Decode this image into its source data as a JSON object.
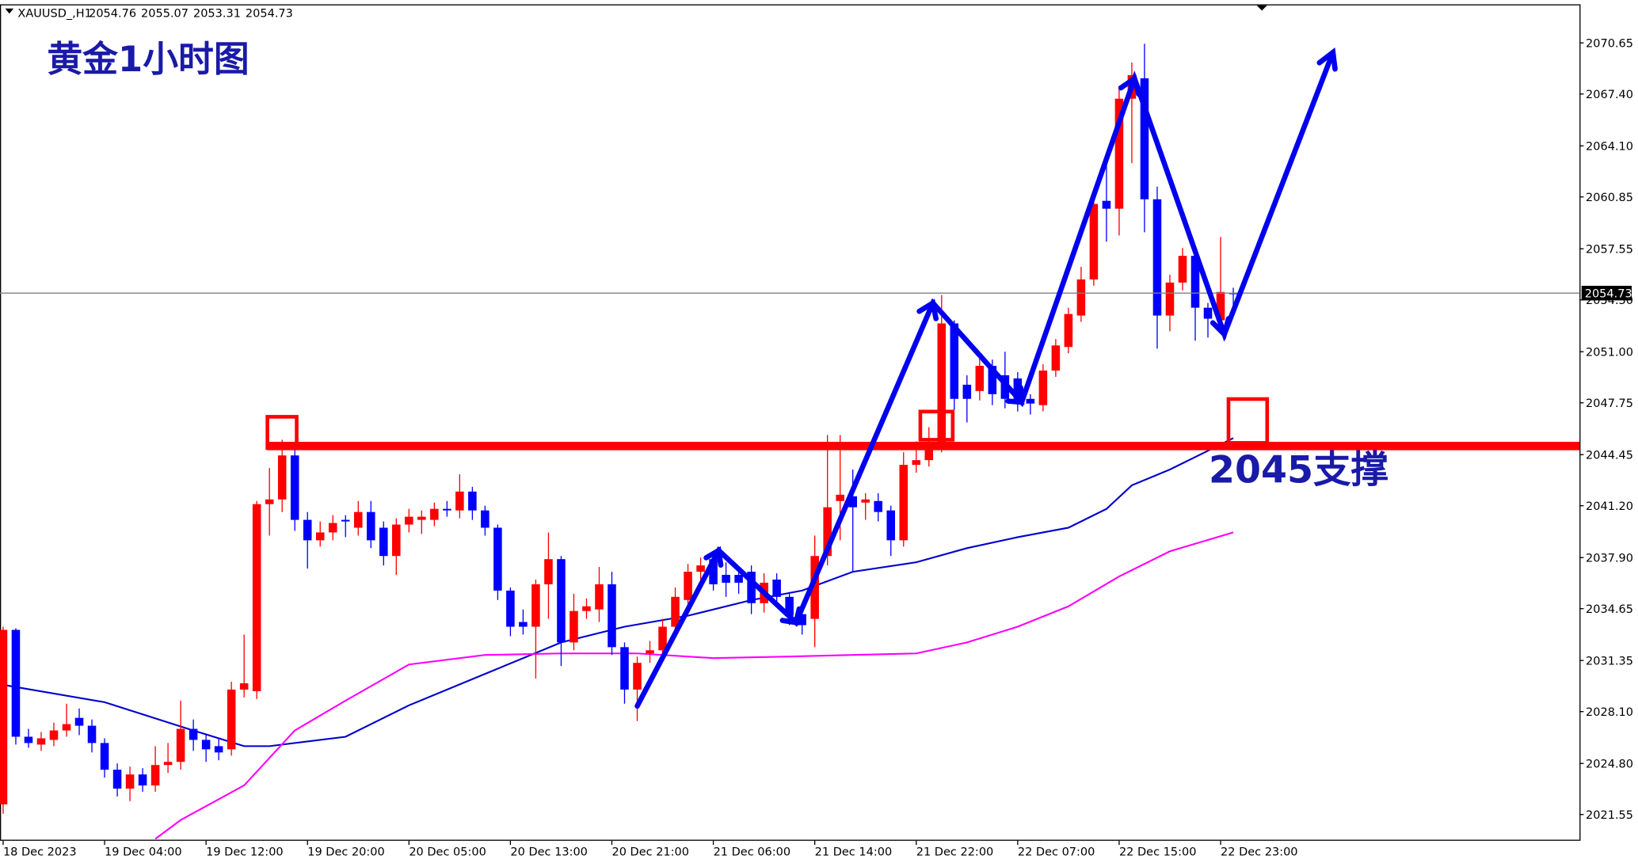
{
  "chart_data": {
    "type": "candlestick",
    "symbol": "XAUUSD_,H1",
    "ohlc_header": [
      2054.76,
      2055.07,
      2053.31,
      2054.73
    ],
    "title": "黄金1小时图",
    "support_label": "2045支撑",
    "support_level": 2045,
    "support_color": "#ff0000",
    "current_price": 2054.73,
    "up_color": "#ff0000",
    "down_color": "#0000ff",
    "grid": false,
    "ylim": [
      2019.88,
      2073.04
    ],
    "yticks": [
      2070.65,
      {
        "value": 2067.4,
        "label": "2067.40"
      },
      {
        "value": 2064.1,
        "label": "2064.10"
      },
      2060.85,
      2057.55,
      {
        "value": 2054.3,
        "label": "2054.30"
      },
      {
        "value": 2051,
        "label": "2051.00"
      },
      2047.75,
      2044.45,
      {
        "value": 2041.2,
        "label": "2041.20"
      },
      {
        "value": 2037.9,
        "label": "2037.90"
      },
      2034.65,
      2031.35,
      {
        "value": 2028.1,
        "label": "2028.10"
      },
      {
        "value": 2024.8,
        "label": "2024.80"
      },
      2021.55
    ],
    "categories": [
      "18 Dec 2023",
      null,
      null,
      null,
      null,
      null,
      null,
      null,
      "19 Dec 04:00",
      null,
      null,
      null,
      null,
      null,
      null,
      null,
      "19 Dec 12:00",
      null,
      null,
      null,
      null,
      null,
      null,
      null,
      "19 Dec 20:00",
      null,
      null,
      null,
      null,
      null,
      null,
      null,
      "20 Dec 05:00",
      null,
      null,
      null,
      null,
      null,
      null,
      null,
      "20 Dec 13:00",
      null,
      null,
      null,
      null,
      null,
      null,
      null,
      "20 Dec 21:00",
      null,
      null,
      null,
      null,
      null,
      null,
      null,
      "21 Dec 06:00",
      null,
      null,
      null,
      null,
      null,
      null,
      null,
      "21 Dec 14:00",
      null,
      null,
      null,
      null,
      null,
      null,
      null,
      "21 Dec 22:00",
      null,
      null,
      null,
      null,
      null,
      null,
      null,
      "22 Dec 07:00",
      null,
      null,
      null,
      null,
      null,
      null,
      null,
      "22 Dec 15:00",
      null,
      null,
      null,
      null,
      null,
      null,
      null,
      "22 Dec 23:00",
      null
    ],
    "open": [
      2022.2,
      2033.3,
      2026.5,
      2026.0,
      2026.3,
      2026.9,
      2027.7,
      2027.2,
      2026.1,
      2024.4,
      2023.2,
      2024.1,
      2023.4,
      2024.7,
      2024.9,
      2027.0,
      2026.3,
      2025.9,
      2025.7,
      2029.5,
      2029.4,
      2041.3,
      2041.6,
      2044.4,
      2040.3,
      2039.0,
      2039.5,
      2040.3,
      2039.8,
      2040.8,
      2039.8,
      2038.0,
      2040.0,
      2040.3,
      2040.3,
      2041.0,
      2040.9,
      2042.1,
      2040.9,
      2039.8,
      2035.8,
      2033.8,
      2033.5,
      2036.2,
      2037.8,
      2032.5,
      2034.5,
      2034.6,
      2036.2,
      2032.2,
      2029.5,
      2031.8,
      2032.0,
      2033.5,
      2035.2,
      2037.0,
      2037.8,
      2036.8,
      2036.8,
      2037.0,
      2035.0,
      2036.5,
      2035.4,
      2034.3,
      2034.0,
      2038.0,
      2041.5,
      2041.8,
      2041.4,
      2041.5,
      2040.9,
      2039.0,
      2043.8,
      2044.1,
      2045.0,
      2052.8,
      2048.9,
      2048.5,
      2050.1,
      2049.5,
      2049.3,
      2048.0,
      2047.6,
      2049.8,
      2051.3,
      2053.3,
      2055.6,
      2060.6,
      2060.1,
      2067.1,
      2068.4,
      2060.7,
      2053.3,
      2055.4,
      2057.1,
      2053.8,
      2053.0,
      2054.76
    ],
    "high": [
      2033.5,
      2033.4,
      2027.0,
      2026.8,
      2027.4,
      2028.6,
      2028.3,
      2027.6,
      2026.4,
      2024.8,
      2024.6,
      2024.5,
      2025.9,
      2026.1,
      2028.8,
      2027.6,
      2026.6,
      2026.4,
      2030.0,
      2033.0,
      2041.5,
      2043.6,
      2045.4,
      2044.9,
      2040.8,
      2040.2,
      2040.6,
      2040.6,
      2041.5,
      2041.5,
      2040.2,
      2040.4,
      2041.0,
      2040.9,
      2041.4,
      2041.5,
      2043.2,
      2042.4,
      2041.2,
      2040.0,
      2036.0,
      2034.6,
      2036.5,
      2039.5,
      2038.0,
      2035.6,
      2035.3,
      2037.3,
      2037.0,
      2032.5,
      2031.6,
      2032.6,
      2034.0,
      2036.0,
      2037.5,
      2037.9,
      2038.2,
      2037.6,
      2037.3,
      2037.4,
      2036.9,
      2036.9,
      2035.7,
      2034.6,
      2039.3,
      2045.7,
      2045.7,
      2043.5,
      2042.0,
      2042.0,
      2041.2,
      2044.6,
      2045.3,
      2046.2,
      2054.6,
      2053.0,
      2049.5,
      2050.9,
      2050.5,
      2051.0,
      2049.7,
      2048.3,
      2050.2,
      2051.8,
      2053.8,
      2056.4,
      2061.0,
      2063.0,
      2067.9,
      2069.4,
      2070.6,
      2061.5,
      2055.9,
      2057.6,
      2057.5,
      2054.1,
      2058.3,
      2055.07
    ],
    "low": [
      2021.6,
      2026.0,
      2025.8,
      2025.6,
      2025.9,
      2026.5,
      2026.6,
      2025.5,
      2023.9,
      2022.7,
      2022.4,
      2023.0,
      2023.0,
      2024.2,
      2024.4,
      2025.6,
      2024.9,
      2025.0,
      2025.3,
      2029.0,
      2028.9,
      2039.3,
      2040.8,
      2039.6,
      2037.2,
      2038.6,
      2039.0,
      2039.2,
      2039.3,
      2038.5,
      2037.4,
      2036.8,
      2039.5,
      2039.4,
      2039.9,
      2040.5,
      2040.4,
      2040.3,
      2039.3,
      2035.2,
      2032.9,
      2033.0,
      2030.2,
      2034.0,
      2031.0,
      2032.0,
      2034.0,
      2033.8,
      2031.7,
      2028.6,
      2027.5,
      2031.2,
      2031.5,
      2033.0,
      2034.8,
      2036.5,
      2035.8,
      2035.4,
      2035.6,
      2034.3,
      2034.4,
      2034.8,
      2033.6,
      2033.0,
      2032.2,
      2037.4,
      2039.0,
      2037.0,
      2040.3,
      2040.2,
      2038.0,
      2038.6,
      2043.3,
      2043.7,
      2044.6,
      2047.3,
      2046.5,
      2047.9,
      2047.6,
      2047.4,
      2047.2,
      2047.0,
      2047.2,
      2049.4,
      2050.9,
      2052.9,
      2055.2,
      2058.0,
      2058.4,
      2063.0,
      2058.6,
      2051.2,
      2052.3,
      2054.9,
      2051.7,
      2051.9,
      2052.6,
      2053.31
    ],
    "close": [
      2033.3,
      2026.5,
      2026.1,
      2026.4,
      2026.9,
      2027.3,
      2027.2,
      2026.1,
      2024.4,
      2023.2,
      2024.1,
      2023.4,
      2024.7,
      2024.9,
      2027.0,
      2026.3,
      2025.7,
      2025.5,
      2029.5,
      2029.9,
      2041.3,
      2041.6,
      2044.4,
      2040.3,
      2039.0,
      2039.5,
      2040.1,
      2040.2,
      2040.8,
      2039.0,
      2038.0,
      2040.0,
      2040.5,
      2040.5,
      2041.0,
      2040.9,
      2042.1,
      2040.9,
      2039.8,
      2035.8,
      2033.5,
      2033.5,
      2036.2,
      2037.8,
      2032.5,
      2034.5,
      2034.8,
      2036.2,
      2032.2,
      2029.5,
      2031.2,
      2032.0,
      2033.5,
      2035.4,
      2037.0,
      2037.4,
      2036.2,
      2036.3,
      2036.3,
      2035.0,
      2036.3,
      2035.4,
      2034.2,
      2033.6,
      2038.0,
      2041.1,
      2041.9,
      2041.1,
      2041.6,
      2040.8,
      2039.0,
      2043.8,
      2044.1,
      2045.0,
      2052.8,
      2048.0,
      2048.0,
      2050.1,
      2048.3,
      2048.0,
      2047.8,
      2047.7,
      2049.8,
      2051.4,
      2053.4,
      2055.6,
      2060.4,
      2060.1,
      2067.1,
      2068.6,
      2060.7,
      2053.3,
      2055.4,
      2057.1,
      2053.8,
      2053.1,
      2054.8,
      2054.73
    ],
    "series": [
      {
        "color": "#0000cc",
        "x": [
          0,
          8,
          15,
          19,
          21,
          27,
          32,
          38,
          44,
          49,
          54,
          59,
          63,
          67,
          72,
          76,
          80,
          84,
          87,
          89,
          92,
          95,
          97
        ],
        "values": [
          2029.8,
          2028.7,
          2026.9,
          2025.9,
          2025.9,
          2026.5,
          2028.5,
          2030.5,
          2032.5,
          2033.5,
          2034.2,
          2035.2,
          2035.8,
          2037.0,
          2037.6,
          2038.5,
          2039.2,
          2039.8,
          2041.0,
          2042.5,
          2043.5,
          2044.7,
          2045.5
        ]
      },
      {
        "color": "#ff00ff",
        "x": [
          12,
          14,
          19,
          23,
          27,
          32,
          38,
          44,
          50,
          56,
          62,
          67,
          72,
          76,
          80,
          84,
          88,
          92,
          97
        ],
        "values": [
          2020.0,
          2021.2,
          2023.4,
          2026.9,
          2028.8,
          2031.1,
          2031.7,
          2031.8,
          2031.8,
          2031.5,
          2031.6,
          2031.7,
          2031.8,
          2032.5,
          2033.5,
          2034.8,
          2036.7,
          2038.3,
          2039.5
        ]
      }
    ]
  }
}
